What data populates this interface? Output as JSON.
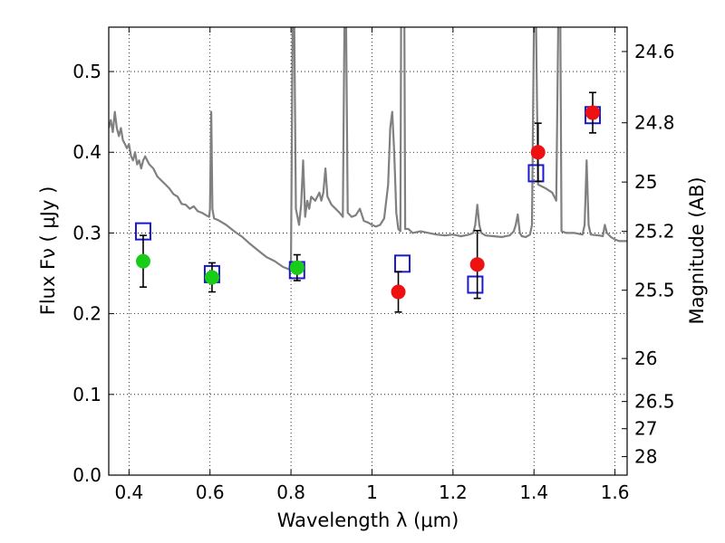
{
  "chart_data": {
    "type": "scatter",
    "title": "",
    "xlabel": "Wavelength  λ (μm)",
    "ylabel": "Flux  Fν  ( μJy )",
    "y2label": "Magnitude (AB)",
    "xlim": [
      0.35,
      1.63
    ],
    "ylim": [
      0.0,
      0.555
    ],
    "grid": true,
    "x_ticks": [
      0.4,
      0.6,
      0.8,
      1.0,
      1.2,
      1.4,
      1.6
    ],
    "x_tick_labels": [
      "0.4",
      "0.6",
      "0.8",
      "1",
      "1.2",
      "1.4",
      "1.6"
    ],
    "y_ticks": [
      0.0,
      0.1,
      0.2,
      0.3,
      0.4,
      0.5
    ],
    "y_tick_labels": [
      "0.0",
      "0.1",
      "0.2",
      "0.3",
      "0.4",
      "0.5"
    ],
    "y2_ticks": [
      {
        "label": "24.6",
        "flux": 0.5248
      },
      {
        "label": "24.8",
        "flux": 0.4365
      },
      {
        "label": "25",
        "flux": 0.3631
      },
      {
        "label": "25.2",
        "flux": 0.302
      },
      {
        "label": "25.5",
        "flux": 0.2291
      },
      {
        "label": "26",
        "flux": 0.1445
      },
      {
        "label": "26.5",
        "flux": 0.0912
      },
      {
        "label": "27",
        "flux": 0.0575
      },
      {
        "label": "28",
        "flux": 0.0229
      }
    ],
    "series": [
      {
        "marker": "line",
        "color": "#808080",
        "points": [
          [
            0.35,
            0.43
          ],
          [
            0.355,
            0.44
          ],
          [
            0.36,
            0.425
          ],
          [
            0.365,
            0.45
          ],
          [
            0.37,
            0.43
          ],
          [
            0.375,
            0.42
          ],
          [
            0.38,
            0.43
          ],
          [
            0.385,
            0.415
          ],
          [
            0.39,
            0.41
          ],
          [
            0.395,
            0.405
          ],
          [
            0.4,
            0.41
          ],
          [
            0.405,
            0.395
          ],
          [
            0.41,
            0.39
          ],
          [
            0.415,
            0.4
          ],
          [
            0.42,
            0.385
          ],
          [
            0.425,
            0.39
          ],
          [
            0.43,
            0.38
          ],
          [
            0.435,
            0.39
          ],
          [
            0.44,
            0.395
          ],
          [
            0.45,
            0.385
          ],
          [
            0.46,
            0.38
          ],
          [
            0.47,
            0.37
          ],
          [
            0.48,
            0.365
          ],
          [
            0.49,
            0.36
          ],
          [
            0.5,
            0.355
          ],
          [
            0.51,
            0.348
          ],
          [
            0.52,
            0.345
          ],
          [
            0.53,
            0.336
          ],
          [
            0.54,
            0.335
          ],
          [
            0.55,
            0.33
          ],
          [
            0.56,
            0.333
          ],
          [
            0.57,
            0.327
          ],
          [
            0.58,
            0.325
          ],
          [
            0.59,
            0.322
          ],
          [
            0.598,
            0.32
          ],
          [
            0.6,
            0.33
          ],
          [
            0.603,
            0.45
          ],
          [
            0.606,
            0.33
          ],
          [
            0.61,
            0.318
          ],
          [
            0.62,
            0.316
          ],
          [
            0.64,
            0.31
          ],
          [
            0.66,
            0.302
          ],
          [
            0.68,
            0.295
          ],
          [
            0.7,
            0.286
          ],
          [
            0.72,
            0.278
          ],
          [
            0.74,
            0.27
          ],
          [
            0.76,
            0.265
          ],
          [
            0.78,
            0.258
          ],
          [
            0.795,
            0.255
          ],
          [
            0.8,
            0.265
          ],
          [
            0.804,
            0.56
          ],
          [
            0.808,
            0.56
          ],
          [
            0.812,
            0.33
          ],
          [
            0.82,
            0.31
          ],
          [
            0.825,
            0.335
          ],
          [
            0.83,
            0.39
          ],
          [
            0.835,
            0.32
          ],
          [
            0.84,
            0.34
          ],
          [
            0.845,
            0.33
          ],
          [
            0.85,
            0.345
          ],
          [
            0.86,
            0.34
          ],
          [
            0.87,
            0.35
          ],
          [
            0.875,
            0.34
          ],
          [
            0.88,
            0.35
          ],
          [
            0.885,
            0.38
          ],
          [
            0.89,
            0.345
          ],
          [
            0.9,
            0.335
          ],
          [
            0.91,
            0.33
          ],
          [
            0.92,
            0.325
          ],
          [
            0.928,
            0.32
          ],
          [
            0.932,
            0.56
          ],
          [
            0.936,
            0.56
          ],
          [
            0.94,
            0.325
          ],
          [
            0.95,
            0.32
          ],
          [
            0.96,
            0.322
          ],
          [
            0.97,
            0.33
          ],
          [
            0.98,
            0.315
          ],
          [
            0.99,
            0.313
          ],
          [
            1.0,
            0.31
          ],
          [
            1.01,
            0.308
          ],
          [
            1.02,
            0.31
          ],
          [
            1.03,
            0.318
          ],
          [
            1.04,
            0.36
          ],
          [
            1.045,
            0.43
          ],
          [
            1.05,
            0.45
          ],
          [
            1.055,
            0.4
          ],
          [
            1.06,
            0.325
          ],
          [
            1.065,
            0.305
          ],
          [
            1.07,
            0.302
          ],
          [
            1.072,
            0.56
          ],
          [
            1.08,
            0.56
          ],
          [
            1.082,
            0.305
          ],
          [
            1.09,
            0.305
          ],
          [
            1.1,
            0.3
          ],
          [
            1.12,
            0.302
          ],
          [
            1.14,
            0.3
          ],
          [
            1.16,
            0.298
          ],
          [
            1.18,
            0.297
          ],
          [
            1.2,
            0.298
          ],
          [
            1.22,
            0.296
          ],
          [
            1.24,
            0.298
          ],
          [
            1.25,
            0.3
          ],
          [
            1.255,
            0.31
          ],
          [
            1.26,
            0.335
          ],
          [
            1.265,
            0.31
          ],
          [
            1.27,
            0.3
          ],
          [
            1.28,
            0.297
          ],
          [
            1.3,
            0.296
          ],
          [
            1.32,
            0.295
          ],
          [
            1.34,
            0.297
          ],
          [
            1.35,
            0.302
          ],
          [
            1.355,
            0.31
          ],
          [
            1.36,
            0.323
          ],
          [
            1.365,
            0.3
          ],
          [
            1.37,
            0.296
          ],
          [
            1.38,
            0.295
          ],
          [
            1.39,
            0.298
          ],
          [
            1.395,
            0.31
          ],
          [
            1.4,
            0.56
          ],
          [
            1.405,
            0.56
          ],
          [
            1.41,
            0.36
          ],
          [
            1.43,
            0.355
          ],
          [
            1.445,
            0.35
          ],
          [
            1.455,
            0.34
          ],
          [
            1.46,
            0.56
          ],
          [
            1.465,
            0.56
          ],
          [
            1.468,
            0.302
          ],
          [
            1.48,
            0.3
          ],
          [
            1.5,
            0.3
          ],
          [
            1.52,
            0.298
          ],
          [
            1.525,
            0.31
          ],
          [
            1.53,
            0.39
          ],
          [
            1.535,
            0.31
          ],
          [
            1.54,
            0.298
          ],
          [
            1.56,
            0.297
          ],
          [
            1.57,
            0.296
          ],
          [
            1.575,
            0.31
          ],
          [
            1.58,
            0.3
          ],
          [
            1.59,
            0.295
          ],
          [
            1.6,
            0.292
          ],
          [
            1.61,
            0.29
          ],
          [
            1.63,
            0.29
          ]
        ]
      },
      {
        "marker": "circle",
        "color": "#18cc18",
        "points": [
          {
            "x": 0.435,
            "y": 0.265,
            "err": 0.032
          },
          {
            "x": 0.605,
            "y": 0.245,
            "err": 0.018
          },
          {
            "x": 0.815,
            "y": 0.257,
            "err": 0.016
          }
        ]
      },
      {
        "marker": "circle",
        "color": "#ee1111",
        "points": [
          {
            "x": 1.065,
            "y": 0.227,
            "err": 0.025
          },
          {
            "x": 1.26,
            "y": 0.261,
            "err": 0.042
          },
          {
            "x": 1.41,
            "y": 0.4,
            "err": 0.036
          },
          {
            "x": 1.545,
            "y": 0.449,
            "err": 0.025
          }
        ]
      },
      {
        "marker": "square",
        "color": "#1a1acc",
        "points": [
          {
            "x": 0.435,
            "y": 0.302
          },
          {
            "x": 0.605,
            "y": 0.249
          },
          {
            "x": 0.815,
            "y": 0.254
          },
          {
            "x": 1.075,
            "y": 0.262
          },
          {
            "x": 1.255,
            "y": 0.236
          },
          {
            "x": 1.405,
            "y": 0.374
          },
          {
            "x": 1.545,
            "y": 0.446
          }
        ]
      }
    ]
  }
}
